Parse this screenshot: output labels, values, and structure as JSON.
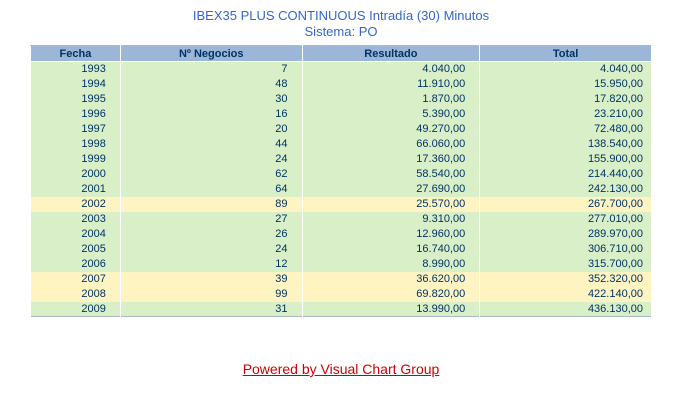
{
  "page": {
    "title": "IBEX35 PLUS CONTINUOUS Intradía (30) Minutos",
    "subtitle": "Sistema: PO"
  },
  "table": {
    "columns": [
      "Fecha",
      "Nº Negocios",
      "Resultado",
      "Total"
    ],
    "rows": [
      {
        "fecha": "1993",
        "negocios": "7",
        "resultado": "4.040,00",
        "total": "4.040,00",
        "highlight": false
      },
      {
        "fecha": "1994",
        "negocios": "48",
        "resultado": "11.910,00",
        "total": "15.950,00",
        "highlight": false
      },
      {
        "fecha": "1995",
        "negocios": "30",
        "resultado": "1.870,00",
        "total": "17.820,00",
        "highlight": false
      },
      {
        "fecha": "1996",
        "negocios": "16",
        "resultado": "5.390,00",
        "total": "23.210,00",
        "highlight": false
      },
      {
        "fecha": "1997",
        "negocios": "20",
        "resultado": "49.270,00",
        "total": "72.480,00",
        "highlight": false
      },
      {
        "fecha": "1998",
        "negocios": "44",
        "resultado": "66.060,00",
        "total": "138.540,00",
        "highlight": false
      },
      {
        "fecha": "1999",
        "negocios": "24",
        "resultado": "17.360,00",
        "total": "155.900,00",
        "highlight": false
      },
      {
        "fecha": "2000",
        "negocios": "62",
        "resultado": "58.540,00",
        "total": "214.440,00",
        "highlight": false
      },
      {
        "fecha": "2001",
        "negocios": "64",
        "resultado": "27.690,00",
        "total": "242.130,00",
        "highlight": false
      },
      {
        "fecha": "2002",
        "negocios": "89",
        "resultado": "25.570,00",
        "total": "267.700,00",
        "highlight": true
      },
      {
        "fecha": "2003",
        "negocios": "27",
        "resultado": "9.310,00",
        "total": "277.010,00",
        "highlight": false
      },
      {
        "fecha": "2004",
        "negocios": "26",
        "resultado": "12.960,00",
        "total": "289.970,00",
        "highlight": false
      },
      {
        "fecha": "2005",
        "negocios": "24",
        "resultado": "16.740,00",
        "total": "306.710,00",
        "highlight": false
      },
      {
        "fecha": "2006",
        "negocios": "12",
        "resultado": "8.990,00",
        "total": "315.700,00",
        "highlight": false
      },
      {
        "fecha": "2007",
        "negocios": "39",
        "resultado": "36.620,00",
        "total": "352.320,00",
        "highlight": true
      },
      {
        "fecha": "2008",
        "negocios": "99",
        "resultado": "69.820,00",
        "total": "422.140,00",
        "highlight": true
      },
      {
        "fecha": "2009",
        "negocios": "31",
        "resultado": "13.990,00",
        "total": "436.130,00",
        "highlight": false
      }
    ]
  },
  "footer": {
    "link_label": "Powered by Visual Chart Group"
  },
  "colors": {
    "title_blue": "#3366cc",
    "header_bg": "#9cb6d8",
    "row_green": "#d9efc7",
    "row_yellow": "#fdf4c2",
    "text_navy": "#003366",
    "link_red": "#cc0000"
  }
}
